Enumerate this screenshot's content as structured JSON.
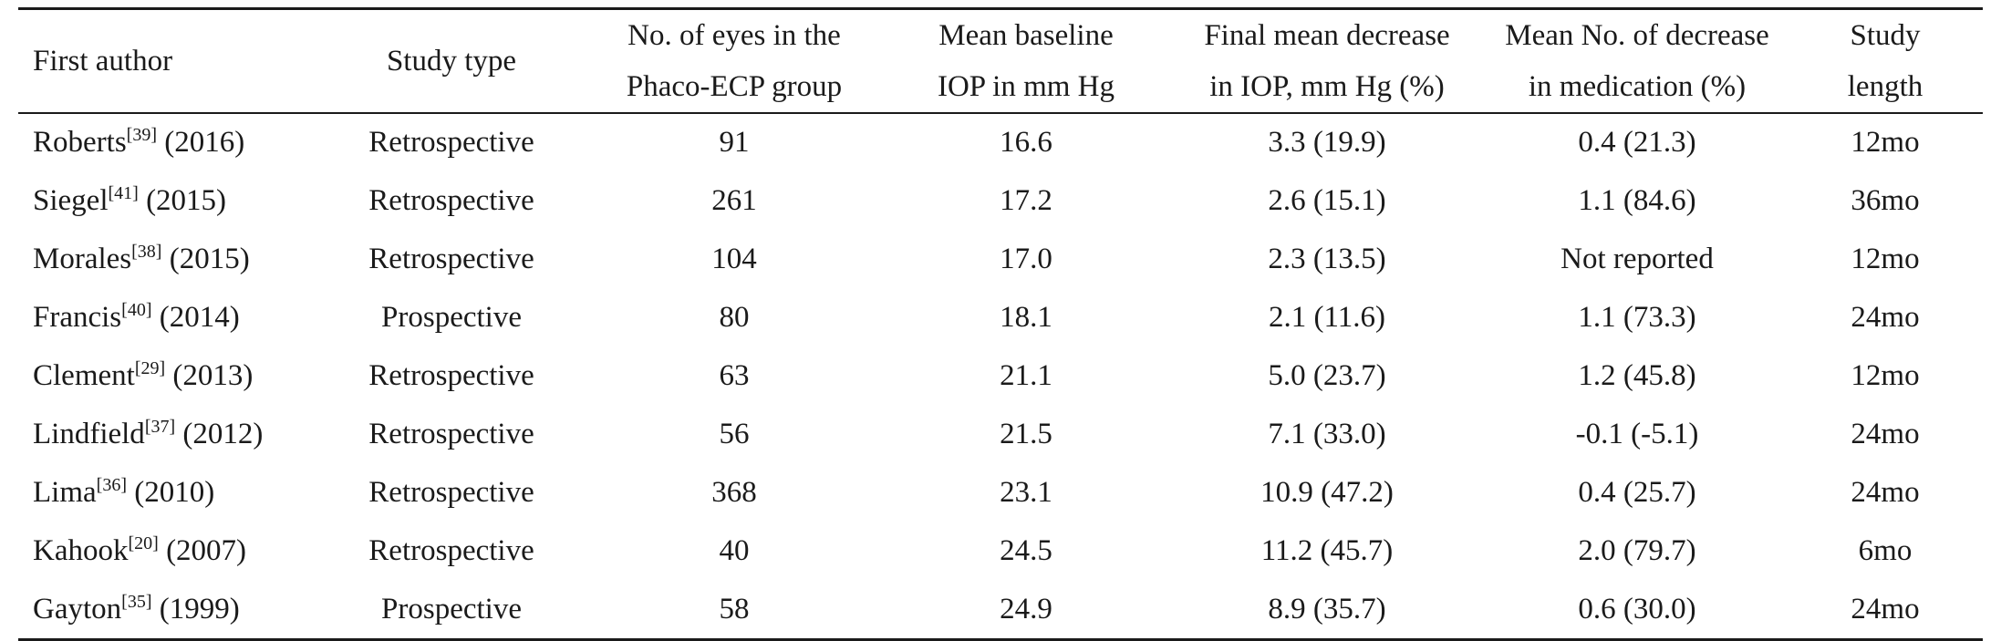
{
  "table": {
    "headers": [
      {
        "lines": [
          "First author"
        ]
      },
      {
        "lines": [
          "Study type"
        ]
      },
      {
        "lines": [
          "No. of eyes in the",
          "Phaco-ECP group"
        ]
      },
      {
        "lines": [
          "Mean baseline",
          "IOP in mm Hg"
        ]
      },
      {
        "lines": [
          "Final mean decrease",
          "in IOP, mm Hg (%)"
        ]
      },
      {
        "lines": [
          "Mean No. of decrease",
          "in medication (%)"
        ]
      },
      {
        "lines": [
          "Study",
          "length"
        ]
      }
    ],
    "rows": [
      {
        "author": "Roberts",
        "ref": "[39]",
        "year": " (2016)",
        "type": "Retrospective",
        "eyes": "91",
        "baseline": "16.6",
        "iop_decrease": "3.3 (19.9)",
        "med_decrease": "0.4 (21.3)",
        "length": "12mo"
      },
      {
        "author": "Siegel",
        "ref": "[41]",
        "year": " (2015)",
        "type": "Retrospective",
        "eyes": "261",
        "baseline": "17.2",
        "iop_decrease": "2.6 (15.1)",
        "med_decrease": "1.1 (84.6)",
        "length": "36mo"
      },
      {
        "author": "Morales",
        "ref": "[38]",
        "year": " (2015)",
        "type": "Retrospective",
        "eyes": "104",
        "baseline": "17.0",
        "iop_decrease": "2.3 (13.5)",
        "med_decrease": "Not reported",
        "length": "12mo"
      },
      {
        "author": "Francis",
        "ref": "[40]",
        "year": " (2014)",
        "type": "Prospective",
        "eyes": "80",
        "baseline": "18.1",
        "iop_decrease": "2.1 (11.6)",
        "med_decrease": "1.1 (73.3)",
        "length": "24mo"
      },
      {
        "author": "Clement",
        "ref": "[29]",
        "year": " (2013)",
        "type": "Retrospective",
        "eyes": "63",
        "baseline": "21.1",
        "iop_decrease": "5.0 (23.7)",
        "med_decrease": "1.2 (45.8)",
        "length": "12mo"
      },
      {
        "author": "Lindfield",
        "ref": "[37]",
        "year": " (2012)",
        "type": "Retrospective",
        "eyes": "56",
        "baseline": "21.5",
        "iop_decrease": "7.1 (33.0)",
        "med_decrease": "-0.1 (-5.1)",
        "length": "24mo"
      },
      {
        "author": "Lima",
        "ref": "[36]",
        "year": " (2010)",
        "type": "Retrospective",
        "eyes": "368",
        "baseline": "23.1",
        "iop_decrease": "10.9 (47.2)",
        "med_decrease": "0.4 (25.7)",
        "length": "24mo"
      },
      {
        "author": "Kahook",
        "ref": "[20]",
        "year": " (2007)",
        "type": "Retrospective",
        "eyes": "40",
        "baseline": "24.5",
        "iop_decrease": "11.2 (45.7)",
        "med_decrease": "2.0 (79.7)",
        "length": "6mo"
      },
      {
        "author": "Gayton",
        "ref": "[35]",
        "year": " (1999)",
        "type": "Prospective",
        "eyes": "58",
        "baseline": "24.9",
        "iop_decrease": "8.9 (35.7)",
        "med_decrease": "0.6 (30.0)",
        "length": "24mo"
      }
    ]
  }
}
